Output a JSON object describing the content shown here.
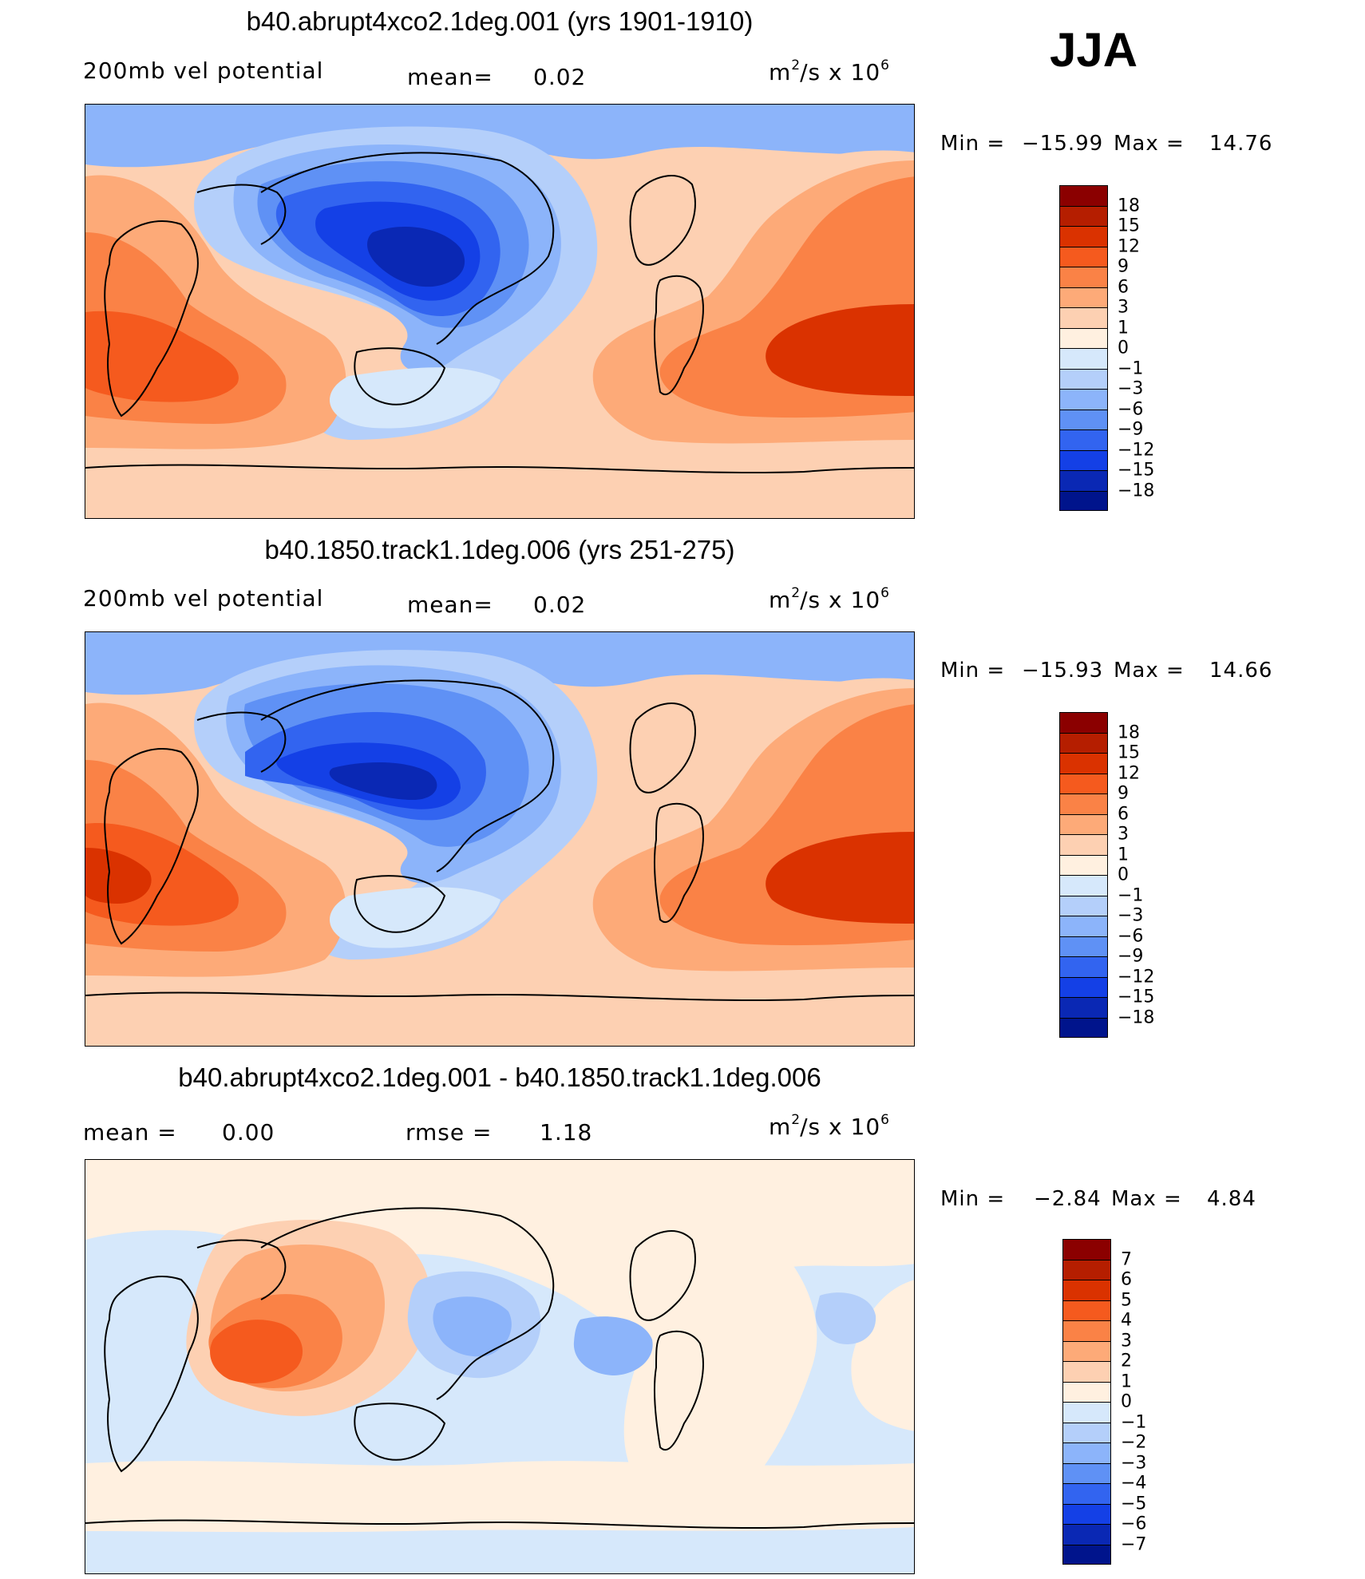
{
  "season": "JJA",
  "panels": [
    {
      "id": "control-future",
      "title": "b40.abrupt4xco2.1deg.001 (yrs 1901-1910)",
      "left_label": "200mb vel potential",
      "center_label": "mean=",
      "center_value": "0.02",
      "units_base": "m",
      "units_exp1": "2",
      "units_mid": "/s x 10",
      "units_exp2": "6",
      "min_label": "Min =",
      "min_value": "−15.99",
      "max_label": "Max =",
      "max_value": "14.76",
      "colorbar": {
        "levels": [
          "18",
          "15",
          "12",
          "9",
          "6",
          "3",
          "1",
          "0",
          "−1",
          "−3",
          "−6",
          "−9",
          "−12",
          "−15",
          "−18"
        ],
        "colors": [
          "#8b0000",
          "#b51e00",
          "#da3200",
          "#f55a1e",
          "#fa8246",
          "#fdaa78",
          "#fdd0b2",
          "#fff0e0",
          "#d6e8fb",
          "#b4cffa",
          "#8cb4fa",
          "#5f91f5",
          "#3264f0",
          "#1440e6",
          "#0a28b4",
          "#00148c"
        ]
      },
      "features": [
        {
          "kind": "blue",
          "region": "Asia-Pacific",
          "peak": -15.99
        },
        {
          "kind": "red",
          "region": "Africa-Indian Ocean",
          "peak": 12
        },
        {
          "kind": "red",
          "region": "South America-Atlantic",
          "peak": 14.76
        }
      ]
    },
    {
      "id": "control-base",
      "title": "b40.1850.track1.1deg.006 (yrs 251-275)",
      "left_label": "200mb vel potential",
      "center_label": "mean=",
      "center_value": "0.02",
      "units_base": "m",
      "units_exp1": "2",
      "units_mid": "/s x 10",
      "units_exp2": "6",
      "min_label": "Min =",
      "min_value": "−15.93",
      "max_label": "Max =",
      "max_value": "14.66",
      "colorbar": {
        "levels": [
          "18",
          "15",
          "12",
          "9",
          "6",
          "3",
          "1",
          "0",
          "−1",
          "−3",
          "−6",
          "−9",
          "−12",
          "−15",
          "−18"
        ],
        "colors": [
          "#8b0000",
          "#b51e00",
          "#da3200",
          "#f55a1e",
          "#fa8246",
          "#fdaa78",
          "#fdd0b2",
          "#fff0e0",
          "#d6e8fb",
          "#b4cffa",
          "#8cb4fa",
          "#5f91f5",
          "#3264f0",
          "#1440e6",
          "#0a28b4",
          "#00148c"
        ]
      },
      "features": [
        {
          "kind": "blue",
          "region": "Asia-Pacific",
          "peak": -15.93
        },
        {
          "kind": "red",
          "region": "Africa-Indian Ocean",
          "peak": 12
        },
        {
          "kind": "red",
          "region": "South America-Atlantic",
          "peak": 14.66
        }
      ]
    },
    {
      "id": "difference",
      "title": "b40.abrupt4xco2.1deg.001 - b40.1850.track1.1deg.006",
      "left_label": "mean =",
      "left_value": "0.00",
      "center_label": "rmse =",
      "center_value": "1.18",
      "units_base": "m",
      "units_exp1": "2",
      "units_mid": "/s x 10",
      "units_exp2": "6",
      "min_label": "Min =",
      "min_value": "−2.84",
      "max_label": "Max =",
      "max_value": "4.84",
      "colorbar": {
        "levels": [
          "7",
          "6",
          "5",
          "4",
          "3",
          "2",
          "1",
          "0",
          "−1",
          "−2",
          "−3",
          "−4",
          "−5",
          "−6",
          "−7"
        ],
        "colors": [
          "#8b0000",
          "#b51e00",
          "#da3200",
          "#f55a1e",
          "#fa8246",
          "#fdaa78",
          "#fdd0b2",
          "#fff0e0",
          "#d6e8fb",
          "#b4cffa",
          "#8cb4fa",
          "#5f91f5",
          "#3264f0",
          "#1440e6",
          "#0a28b4",
          "#00148c"
        ]
      },
      "features": [
        {
          "kind": "red",
          "region": "Arabian Sea-India",
          "peak": 4.84
        },
        {
          "kind": "blue",
          "region": "Central Pacific",
          "peak": -2.84
        }
      ]
    }
  ]
}
